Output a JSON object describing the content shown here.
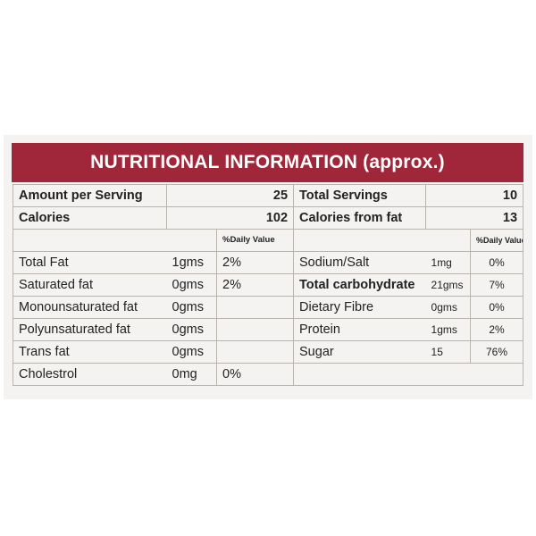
{
  "title": "NUTRITIONAL INFORMATION (approx.)",
  "summary": {
    "amount_per_serving_label": "Amount per Serving",
    "amount_per_serving_value": "25",
    "total_servings_label": "Total Servings",
    "total_servings_value": "10",
    "calories_label": "Calories",
    "calories_value": "102",
    "calories_from_fat_label": "Calories from fat",
    "calories_from_fat_value": "13"
  },
  "dv_header_left": "%Daily Value",
  "dv_header_right": "%Daily Value",
  "rows": [
    {
      "l_name": "Total Fat",
      "l_amount": "1gms",
      "l_dv": "2%",
      "r_name": "Sodium/Salt",
      "r_amount": "1mg",
      "r_dv": "0%"
    },
    {
      "l_name": "Saturated fat",
      "l_amount": "0gms",
      "l_dv": "2%",
      "r_name": "Total carbohydrate",
      "r_amount": "21gms",
      "r_dv": "7%"
    },
    {
      "l_name": "Monounsaturated fat",
      "l_amount": "0gms",
      "l_dv": "",
      "r_name": "Dietary Fibre",
      "r_amount": "0gms",
      "r_dv": "0%"
    },
    {
      "l_name": "Polyunsaturated fat",
      "l_amount": "0gms",
      "l_dv": "",
      "r_name": "Protein",
      "r_amount": "1gms",
      "r_dv": "2%"
    },
    {
      "l_name": "Trans fat",
      "l_amount": "0gms",
      "l_dv": "",
      "r_name": "Sugar",
      "r_amount": "15",
      "r_dv": "76%"
    },
    {
      "l_name": "Cholestrol",
      "l_amount": "0mg",
      "l_dv": "0%",
      "r_name": "",
      "r_amount": "",
      "r_dv": ""
    }
  ],
  "colors": {
    "banner": "#a0273a",
    "background": "#f4f3f1"
  }
}
